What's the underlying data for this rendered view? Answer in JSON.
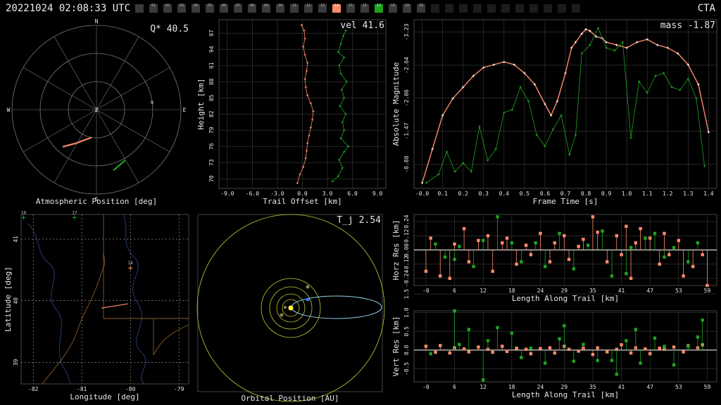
{
  "header": {
    "timestamp": "20221024 02:08:33 UTC",
    "network": "CTA"
  },
  "stations": [
    {
      "label": "",
      "state": "off"
    },
    {
      "label": "01",
      "state": "off"
    },
    {
      "label": "02",
      "state": "off"
    },
    {
      "label": "03",
      "state": "off"
    },
    {
      "label": "04",
      "state": "off"
    },
    {
      "label": "05",
      "state": "off"
    },
    {
      "label": "06",
      "state": "off"
    },
    {
      "label": "07",
      "state": "off"
    },
    {
      "label": "08",
      "state": "off"
    },
    {
      "label": "09",
      "state": "off"
    },
    {
      "label": "10",
      "state": "off"
    },
    {
      "label": "11",
      "state": "off"
    },
    {
      "label": "12",
      "state": "off"
    },
    {
      "label": "13",
      "state": "off"
    },
    {
      "label": "14",
      "state": "orange"
    },
    {
      "label": "15",
      "state": "off"
    },
    {
      "label": "16",
      "state": "off"
    },
    {
      "label": "17",
      "state": "green"
    },
    {
      "label": "18",
      "state": "off"
    },
    {
      "label": "19",
      "state": "off"
    },
    {
      "label": "20",
      "state": "off"
    },
    {
      "label": "",
      "state": "dark"
    },
    {
      "label": "",
      "state": "dark"
    },
    {
      "label": "",
      "state": "dark"
    },
    {
      "label": "",
      "state": "dark"
    },
    {
      "label": "",
      "state": "dark"
    },
    {
      "label": "",
      "state": "dark"
    },
    {
      "label": "",
      "state": "dark"
    },
    {
      "label": "",
      "state": "dark"
    },
    {
      "label": "",
      "state": "dark"
    },
    {
      "label": "",
      "state": "dark"
    },
    {
      "label": "",
      "state": "dark"
    }
  ],
  "colors": {
    "orange": "#ff8c69",
    "green": "#1fa31f",
    "grid": "#3c3c3c",
    "axis": "#cfcfcf",
    "yellow": "#c8c832",
    "blue": "#2a7fff",
    "cyan": "#8fd0e8"
  },
  "chart_data": [
    {
      "id": "atmospheric",
      "type": "polar",
      "xlabel": "Atmospheric Position [deg]",
      "annotation": "Q* 40.5",
      "directions": [
        "N",
        "E",
        "S",
        "W"
      ],
      "zenith": "Z",
      "marker": "R",
      "series": [
        {
          "name": "station 14",
          "color": "orange",
          "points": [
            [
              -0.4,
              -0.44
            ],
            [
              -0.25,
              -0.4
            ],
            [
              -0.06,
              -0.33
            ]
          ]
        },
        {
          "name": "station 17",
          "color": "green",
          "points": [
            [
              0.2,
              -0.72
            ],
            [
              0.34,
              -0.6
            ]
          ]
        }
      ]
    },
    {
      "id": "trail",
      "type": "scatter",
      "xlabel": "Trail Offset [km]",
      "ylabel": "Height [km]",
      "annotation": "vel 41.6",
      "xticks": [
        "-9.0",
        "-6.0",
        "-3.0",
        "0.0",
        "3.0",
        "6.0",
        "9.0"
      ],
      "yticks": [
        "70",
        "73",
        "76",
        "79",
        "82",
        "85",
        "88",
        "91",
        "94",
        "97"
      ],
      "xlim": [
        -10,
        10
      ],
      "ylim": [
        68.2,
        99.5
      ],
      "series": [
        {
          "name": "station 14",
          "color": "orange",
          "x": [
            -0.6,
            -0.3,
            0.1,
            0.4,
            0.5,
            0.6,
            0.8,
            1.0,
            1.2,
            1.3,
            1.0,
            0.6,
            0.4,
            0.3,
            0.5,
            0.6,
            0.3,
            0.1,
            0.3,
            0.2,
            -0.1
          ],
          "y": [
            69.2,
            70.8,
            72.2,
            73.8,
            75.2,
            76.6,
            78.0,
            79.5,
            81.0,
            82.5,
            84.0,
            85.5,
            87.0,
            88.5,
            90.0,
            91.5,
            93.0,
            94.5,
            96.0,
            97.5,
            98.5
          ]
        },
        {
          "name": "station 17",
          "color": "green",
          "x": [
            3.6,
            4.3,
            4.8,
            4.4,
            5.0,
            5.5,
            4.6,
            5.0,
            4.8,
            5.2,
            4.5,
            5.0,
            4.7,
            5.3,
            4.6,
            4.4,
            5.0,
            4.3,
            4.6,
            4.9,
            5.2
          ],
          "y": [
            69.5,
            70.5,
            72.0,
            73.5,
            75.0,
            76.0,
            77.5,
            79.0,
            80.5,
            82.0,
            83.5,
            85.0,
            86.5,
            88.0,
            89.5,
            91.0,
            92.5,
            93.5,
            95.0,
            96.5,
            97.5
          ]
        }
      ]
    },
    {
      "id": "magnitude",
      "type": "line",
      "xlabel": "Frame Time [s]",
      "ylabel": "Absolute Magnitude",
      "annotation": "mass -1.87",
      "xticks": [
        "-0.0",
        "0.1",
        "0.2",
        "0.3",
        "0.4",
        "0.5",
        "0.6",
        "0.7",
        "0.8",
        "0.9",
        "1.0",
        "1.1",
        "1.2",
        "1.3",
        "1.4"
      ],
      "yticks": [
        "-3.23",
        "-2.64",
        "-2.06",
        "-1.47",
        "-0.88"
      ],
      "xlim": [
        -0.04,
        1.44
      ],
      "ylim": [
        -0.45,
        -3.45
      ],
      "yinverted": true,
      "series": [
        {
          "name": "station 14",
          "color": "orange",
          "x": [
            0.0,
            0.05,
            0.1,
            0.15,
            0.2,
            0.25,
            0.3,
            0.35,
            0.4,
            0.45,
            0.5,
            0.55,
            0.6,
            0.63,
            0.66,
            0.7,
            0.73,
            0.75,
            0.78,
            0.8,
            0.82,
            0.85,
            0.88,
            0.9,
            0.95,
            1.0,
            1.05,
            1.1,
            1.15,
            1.2,
            1.25,
            1.3,
            1.35,
            1.4
          ],
          "y": [
            -0.55,
            -1.15,
            -1.75,
            -2.05,
            -2.25,
            -2.45,
            -2.6,
            -2.65,
            -2.7,
            -2.65,
            -2.5,
            -2.3,
            -1.95,
            -1.75,
            -2.0,
            -2.5,
            -2.95,
            -3.05,
            -3.2,
            -3.28,
            -3.25,
            -3.15,
            -3.12,
            -3.05,
            -3.0,
            -2.95,
            -3.05,
            -3.1,
            -3.0,
            -2.95,
            -2.85,
            -2.65,
            -2.3,
            -1.45
          ]
        },
        {
          "name": "station 17",
          "color": "green",
          "x": [
            0.02,
            0.08,
            0.12,
            0.16,
            0.2,
            0.24,
            0.28,
            0.32,
            0.36,
            0.4,
            0.44,
            0.48,
            0.52,
            0.56,
            0.6,
            0.64,
            0.68,
            0.72,
            0.75,
            0.78,
            0.82,
            0.86,
            0.9,
            0.94,
            0.98,
            1.02,
            1.06,
            1.1,
            1.14,
            1.18,
            1.22,
            1.26,
            1.3,
            1.34,
            1.38
          ],
          "y": [
            -0.55,
            -0.7,
            -1.1,
            -0.75,
            -0.9,
            -0.75,
            -1.55,
            -0.95,
            -1.15,
            -1.8,
            -1.85,
            -2.25,
            -2.0,
            -1.4,
            -1.2,
            -1.5,
            -1.75,
            -1.05,
            -1.4,
            -2.85,
            -3.0,
            -3.3,
            -2.95,
            -2.9,
            -3.05,
            -1.35,
            -2.35,
            -2.15,
            -2.45,
            -2.5,
            -2.25,
            -2.2,
            -2.4,
            -2.05,
            -0.85
          ]
        }
      ]
    },
    {
      "id": "map",
      "type": "map",
      "xlabel": "Longitude [deg]",
      "ylabel": "Latitude [deg]",
      "xticks": [
        "-82",
        "-81",
        "-80",
        "-79"
      ],
      "yticks": [
        "39",
        "40",
        "41"
      ],
      "xlim": [
        -82.25,
        -78.8
      ],
      "ylim": [
        38.65,
        41.4
      ],
      "stations": [
        {
          "label": "16",
          "lon": -82.2,
          "lat": 41.35,
          "color": "green"
        },
        {
          "label": "17",
          "lon": -81.15,
          "lat": 41.35,
          "color": "green"
        },
        {
          "label": "14",
          "lon": -80.0,
          "lat": 40.53,
          "color": "orange"
        }
      ],
      "trail": [
        [
          -80.6,
          39.88
        ],
        [
          -80.05,
          39.95
        ]
      ]
    },
    {
      "id": "orbit",
      "type": "orbit",
      "xlabel": "Orbital Position [AU]",
      "annotation": "T_j 2.54"
    },
    {
      "id": "horz-res",
      "type": "stem",
      "xlabel": "Length Along Trail [km]",
      "ylabel": "Horz Res [km]",
      "xticks": [
        "-0",
        "6",
        "12",
        "18",
        "24",
        "29",
        "35",
        "41",
        "47",
        "53",
        "59"
      ],
      "yticks": [
        "-0.24",
        "-0.12",
        "0.00",
        "0.12",
        "0.24"
      ],
      "xlim": [
        -2.5,
        61
      ],
      "ylim": [
        -0.3,
        0.3
      ],
      "series": [
        {
          "name": "station 14",
          "color": "orange",
          "x": [
            0,
            1,
            3,
            5,
            6,
            8,
            9,
            11,
            13,
            14,
            16,
            17,
            19,
            21,
            22,
            24,
            26,
            27,
            29,
            30,
            32,
            33,
            35,
            36,
            38,
            40,
            41,
            42,
            43,
            44,
            45,
            47,
            49,
            50,
            51,
            53,
            54,
            56,
            58,
            59
          ],
          "y": [
            -0.18,
            0.1,
            -0.22,
            -0.24,
            0.05,
            0.18,
            -0.1,
            0.08,
            0.12,
            -0.18,
            0.06,
            0.1,
            -0.12,
            0.04,
            -0.04,
            0.14,
            -0.1,
            0.06,
            0.12,
            -0.08,
            0.03,
            0.09,
            0.28,
            0.15,
            -0.1,
            0.12,
            -0.04,
            0.2,
            -0.24,
            0.06,
            0.18,
            0.1,
            -0.12,
            0.14,
            -0.04,
            0.08,
            -0.22,
            -0.14,
            -0.04,
            -0.3
          ]
        },
        {
          "name": "station 17",
          "color": "green",
          "x": [
            2,
            4,
            6,
            7,
            10,
            12,
            15,
            18,
            20,
            23,
            25,
            28,
            31,
            34,
            37,
            39,
            42,
            43,
            46,
            48,
            50,
            52,
            55,
            57
          ],
          "y": [
            0.05,
            -0.06,
            -0.08,
            0.03,
            -0.14,
            0.08,
            0.28,
            0.06,
            -0.1,
            0.06,
            -0.14,
            0.14,
            -0.16,
            0.04,
            0.16,
            -0.22,
            -0.2,
            0.02,
            0.1,
            0.14,
            -0.06,
            0.02,
            -0.1,
            0.06
          ]
        }
      ]
    },
    {
      "id": "vert-res",
      "type": "stem",
      "xlabel": "Length Along Trail [km]",
      "ylabel": "Vert Res [km]",
      "xticks": [
        "-0",
        "6",
        "12",
        "18",
        "24",
        "29",
        "35",
        "41",
        "47",
        "53",
        "59"
      ],
      "yticks": [
        "-0.5",
        "0.0",
        "0.5",
        "1.0",
        "1.5"
      ],
      "xlim": [
        -2.5,
        61
      ],
      "ylim": [
        -0.85,
        1.05
      ],
      "series": [
        {
          "name": "station 14",
          "color": "orange",
          "x": [
            0,
            2,
            3,
            5,
            6,
            8,
            9,
            11,
            13,
            14,
            16,
            17,
            19,
            21,
            22,
            24,
            26,
            27,
            29,
            30,
            32,
            33,
            35,
            36,
            38,
            40,
            41,
            43,
            44,
            46,
            47,
            49,
            50,
            52,
            54,
            55,
            57,
            58
          ],
          "y": [
            0.1,
            -0.06,
            0.12,
            -0.08,
            0.06,
            0.03,
            -0.05,
            0.08,
            0.02,
            -0.06,
            0.1,
            -0.04,
            0.05,
            0.02,
            -0.1,
            0.04,
            0.06,
            -0.08,
            0.1,
            0.02,
            -0.03,
            0.05,
            -0.12,
            0.06,
            -0.05,
            0.02,
            0.14,
            -0.08,
            0.06,
            0.03,
            -0.1,
            0.05,
            0.02,
            0.08,
            -0.05,
            0.12,
            0.06,
            0.14
          ]
        },
        {
          "name": "station 17",
          "color": "green",
          "x": [
            1,
            6,
            7,
            9,
            12,
            13,
            15,
            18,
            20,
            22,
            25,
            28,
            29,
            31,
            33,
            36,
            39,
            40,
            42,
            44,
            45,
            48,
            50,
            52,
            55,
            57,
            58
          ],
          "y": [
            -0.1,
            1.05,
            0.15,
            0.55,
            -0.8,
            0.25,
            0.6,
            0.45,
            -0.2,
            0.05,
            -0.35,
            0.3,
            0.65,
            -0.3,
            0.15,
            -0.28,
            -0.28,
            -0.65,
            0.25,
            0.55,
            -0.35,
            0.32,
            0.1,
            -0.4,
            0.1,
            0.35,
            0.8
          ]
        }
      ]
    }
  ]
}
